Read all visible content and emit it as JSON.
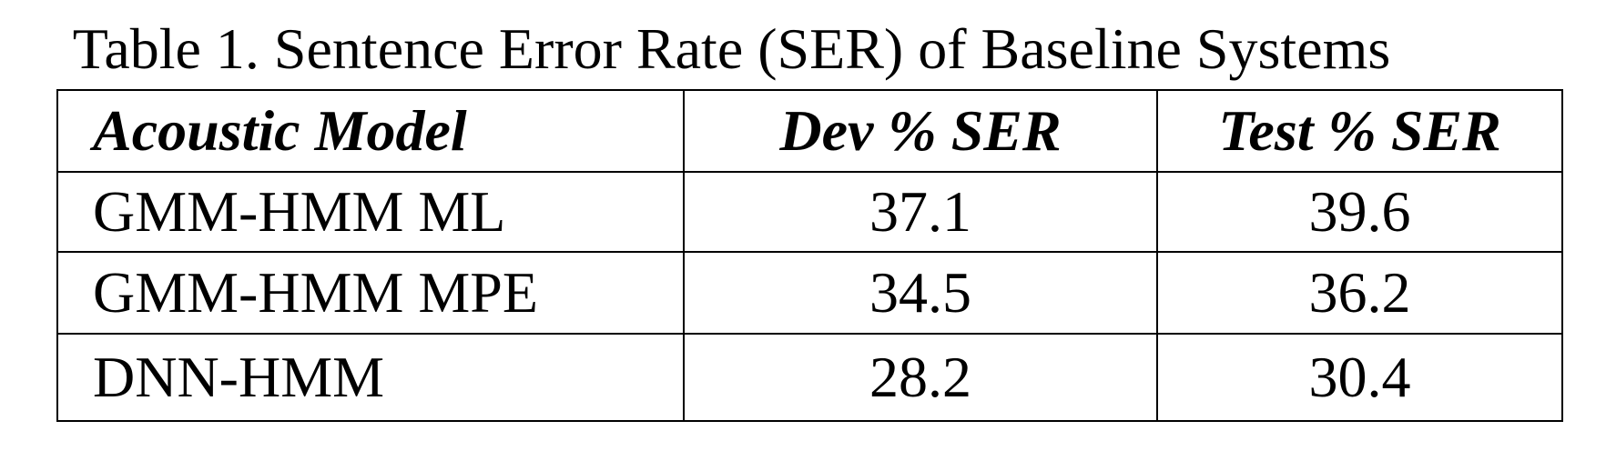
{
  "caption": "Table 1. Sentence Error Rate (SER) of Baseline Systems",
  "table": {
    "headers": [
      "Acoustic Model",
      "Dev % SER",
      "Test % SER"
    ],
    "rows": [
      [
        "GMM-HMM ML",
        "37.1",
        "39.6"
      ],
      [
        "GMM-HMM MPE",
        "34.5",
        "36.2"
      ],
      [
        "DNN-HMM",
        "28.2",
        "30.4"
      ]
    ]
  }
}
